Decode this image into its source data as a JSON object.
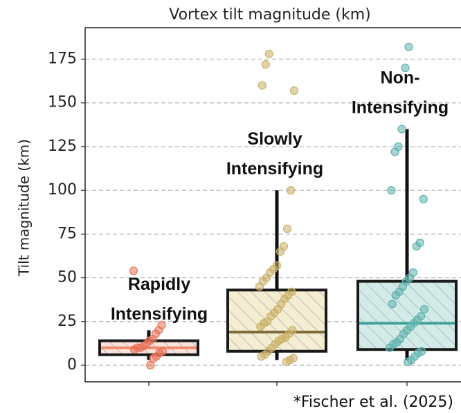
{
  "chart_data": {
    "type": "box",
    "title": "Vortex tilt magnitude (km)",
    "y_label": "Tilt magnitude (km)",
    "note": "*Fischer et al. (2025)",
    "ylim": [
      -9.5,
      193
    ],
    "yticks": [
      0,
      25,
      50,
      75,
      100,
      125,
      150,
      175
    ],
    "grid": true,
    "categories": [
      null,
      null,
      null
    ],
    "series": [
      {
        "label": [
          "Rapidly",
          "Intensifying"
        ],
        "color": "#e8735a",
        "fill": "#fbe3dc",
        "median_color": "#f08a6e",
        "q1": 6,
        "median": 10,
        "q3": 14,
        "whisker_low": 3,
        "whisker_high": 20,
        "points": [
          54,
          23,
          20,
          18,
          15,
          14,
          12,
          11,
          10,
          10,
          9,
          8,
          7,
          5,
          4,
          0
        ]
      },
      {
        "label": [
          "Slowly",
          "Intensifying"
        ],
        "color": "#c9b068",
        "fill": "#f4edcf",
        "median_color": "#7d6c3c",
        "q1": 8,
        "median": 19,
        "q3": 43,
        "whisker_low": 3,
        "whisker_high": 100,
        "points": [
          178,
          172,
          160,
          157,
          100,
          78,
          68,
          65,
          57,
          55,
          53,
          50,
          48,
          45,
          42,
          40,
          38,
          35,
          32,
          30,
          28,
          25,
          24,
          22,
          20,
          18,
          16,
          15,
          14,
          12,
          10,
          8,
          6,
          5,
          4,
          3,
          2
        ]
      },
      {
        "label": [
          "Non-",
          "Intensifying"
        ],
        "color": "#5fb3ad",
        "fill": "#d2ebe7",
        "median_color": "#3fa39b",
        "q1": 9,
        "median": 24,
        "q3": 48,
        "whisker_low": 3,
        "whisker_high": 135,
        "points": [
          182,
          170,
          135,
          125,
          122,
          100,
          95,
          70,
          68,
          53,
          50,
          48,
          45,
          42,
          40,
          35,
          32,
          28,
          26,
          24,
          22,
          20,
          18,
          15,
          13,
          12,
          10,
          8,
          7,
          5,
          3,
          2
        ]
      }
    ]
  }
}
